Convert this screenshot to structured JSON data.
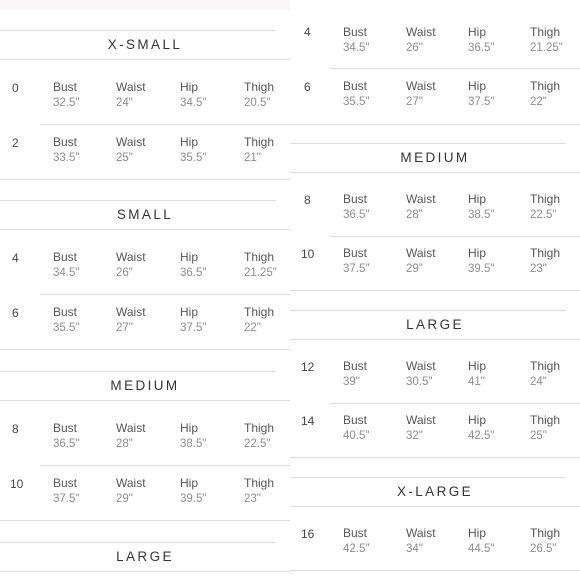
{
  "labels": {
    "bust": "Bust",
    "waist": "Waist",
    "hip": "Hip",
    "thigh": "Thigh"
  },
  "left": {
    "xsmall_title": "X-SMALL",
    "row0": {
      "size": "0",
      "bust": "32.5\"",
      "waist": "24\"",
      "hip": "34.5\"",
      "thigh": "20.5\""
    },
    "row2": {
      "size": "2",
      "bust": "33.5\"",
      "waist": "25\"",
      "hip": "35.5\"",
      "thigh": "21\""
    },
    "small_title": "SMALL",
    "row4": {
      "size": "4",
      "bust": "34.5\"",
      "waist": "26\"",
      "hip": "36.5\"",
      "thigh": "21.25\""
    },
    "row6": {
      "size": "6",
      "bust": "35.5\"",
      "waist": "27\"",
      "hip": "37.5\"",
      "thigh": "22\""
    },
    "medium_title": "MEDIUM",
    "row8": {
      "size": "8",
      "bust": "36.5\"",
      "waist": "28\"",
      "hip": "38.5\"",
      "thigh": "22.5\""
    },
    "row10": {
      "size": "10",
      "bust": "37.5\"",
      "waist": "29\"",
      "hip": "39.5\"",
      "thigh": "23\""
    },
    "large_title": "LARGE"
  },
  "right": {
    "row4": {
      "size": "4",
      "bust": "34.5\"",
      "waist": "26\"",
      "hip": "36.5\"",
      "thigh": "21.25\""
    },
    "row6": {
      "size": "6",
      "bust": "35.5\"",
      "waist": "27\"",
      "hip": "37.5\"",
      "thigh": "22\""
    },
    "medium_title": "MEDIUM",
    "row8": {
      "size": "8",
      "bust": "36.5\"",
      "waist": "28\"",
      "hip": "38.5\"",
      "thigh": "22.5\""
    },
    "row10": {
      "size": "10",
      "bust": "37.5\"",
      "waist": "29\"",
      "hip": "39.5\"",
      "thigh": "23\""
    },
    "large_title": "LARGE",
    "row12": {
      "size": "12",
      "bust": "39\"",
      "waist": "30.5\"",
      "hip": "41\"",
      "thigh": "24\""
    },
    "row14": {
      "size": "14",
      "bust": "40.5\"",
      "waist": "32\"",
      "hip": "42.5\"",
      "thigh": "25\""
    },
    "xlarge_title": "X-LARGE",
    "row16": {
      "size": "16",
      "bust": "42.5\"",
      "waist": "34\"",
      "hip": "44.5\"",
      "thigh": "26.5\""
    }
  }
}
